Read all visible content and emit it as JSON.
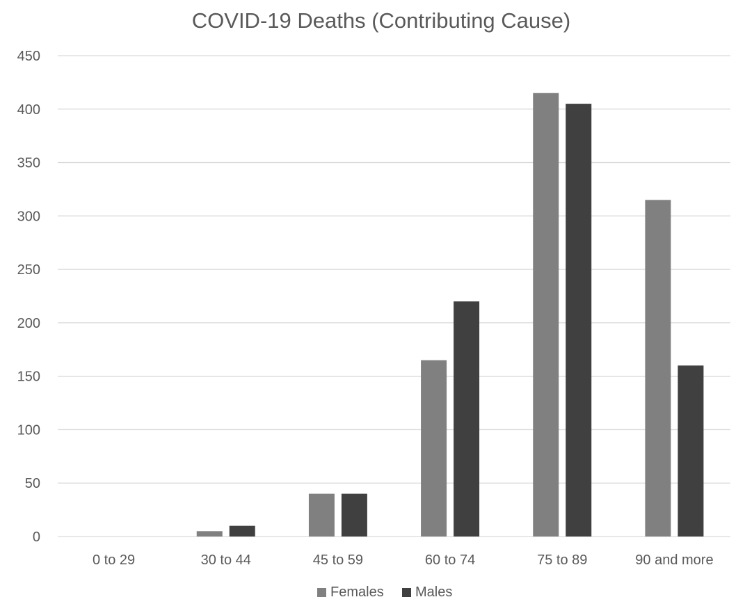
{
  "chart_data": {
    "type": "bar",
    "title": "COVID-19 Deaths (Contributing Cause)",
    "categories": [
      "0 to 29",
      "30 to 44",
      "45 to 59",
      "60 to 74",
      "75 to 89",
      "90 and more"
    ],
    "series": [
      {
        "name": "Females",
        "values": [
          0,
          5,
          40,
          165,
          415,
          315
        ],
        "color": "#808080"
      },
      {
        "name": "Males",
        "values": [
          0,
          10,
          40,
          220,
          405,
          160
        ],
        "color": "#404040"
      }
    ],
    "ylim": [
      0,
      450
    ],
    "yticks": [
      "0",
      "50",
      "100",
      "150",
      "200",
      "250",
      "300",
      "350",
      "400",
      "450"
    ],
    "grid": true,
    "legend_position": "bottom-center",
    "colors": {
      "gridline": "#d9d9d9",
      "axis_text": "#595959",
      "title_text": "#595959",
      "background": "#ffffff"
    }
  }
}
